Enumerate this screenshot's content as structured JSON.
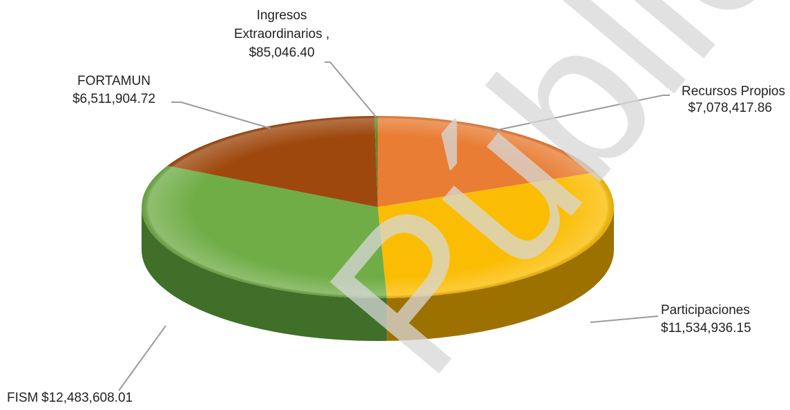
{
  "chart_data": {
    "type": "pie",
    "title": "",
    "slices": [
      {
        "label": "Recursos Propios",
        "value": 7078417.86,
        "display": "$7,078,417.86",
        "color": "#E87D33",
        "side": "#B0561C"
      },
      {
        "label": "Participaciones",
        "value": 11534936.15,
        "display": "$11,534,936.15",
        "color": "#FBBD04",
        "side": "#9C7100"
      },
      {
        "label": "FISM",
        "value": 12483608.01,
        "display": "$12,483,608.01",
        "color": "#70AD47",
        "side": "#3F6F28"
      },
      {
        "label": "FORTAMUN",
        "value": 6511904.72,
        "display": "$6,511,904.72",
        "color": "#9E480E",
        "side": "#6A2F08"
      },
      {
        "label": "Ingresos Extraordinarios ,",
        "value": 85046.4,
        "display": "$85,046.40",
        "color": "#5E8A2E",
        "side": "#3B5A1A"
      }
    ],
    "legend": "none",
    "style": "3d"
  },
  "watermark": "Pública"
}
